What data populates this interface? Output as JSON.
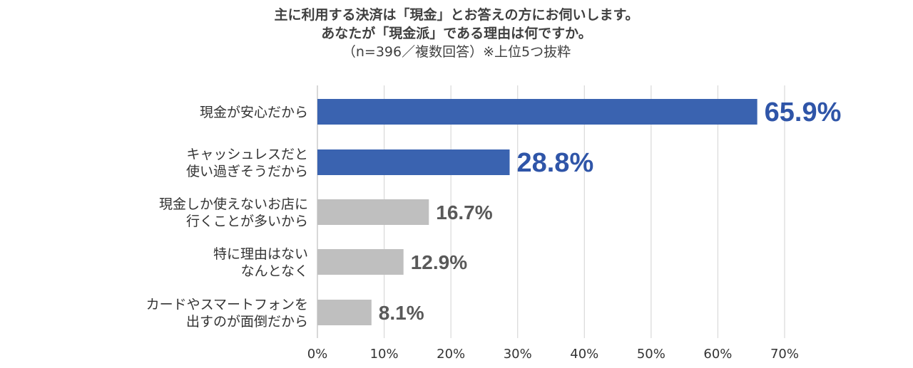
{
  "chart_data": {
    "type": "bar",
    "orientation": "horizontal",
    "title": "主に利用する決済は「現金」とお答えの方にお伺いします。",
    "title_line2": "あなたが「現金派」である理由は何ですか。",
    "subtitle": "（n=396／複数回答）※上位5つ抜粋",
    "categories": [
      [
        "現金が安心だから"
      ],
      [
        "キャッシュレスだと",
        "使い過ぎそうだから"
      ],
      [
        "現金しか使えないお店に",
        "行くことが多いから"
      ],
      [
        "特に理由はない",
        "なんとなく"
      ],
      [
        "カードやスマートフォンを",
        "出すのが面倒だから"
      ]
    ],
    "values": [
      65.9,
      28.8,
      16.7,
      12.9,
      8.1
    ],
    "value_labels": [
      "65.9%",
      "28.8%",
      "16.7%",
      "12.9%",
      "8.1%"
    ],
    "highlight": [
      true,
      true,
      false,
      false,
      false
    ],
    "xlim": [
      0,
      70
    ],
    "xticks": [
      0,
      10,
      20,
      30,
      40,
      50,
      60,
      70
    ],
    "xtick_labels": [
      "0%",
      "10%",
      "20%",
      "30%",
      "40%",
      "50%",
      "60%",
      "70%"
    ],
    "grid": true,
    "legend": "none",
    "colors": {
      "highlight_bar": "#3A63B0",
      "normal_bar": "#BFBFBF",
      "highlight_text": "#2F55A8",
      "normal_text": "#595959",
      "grid": "#D9D9D9",
      "axis": "#BFBFBF"
    }
  }
}
